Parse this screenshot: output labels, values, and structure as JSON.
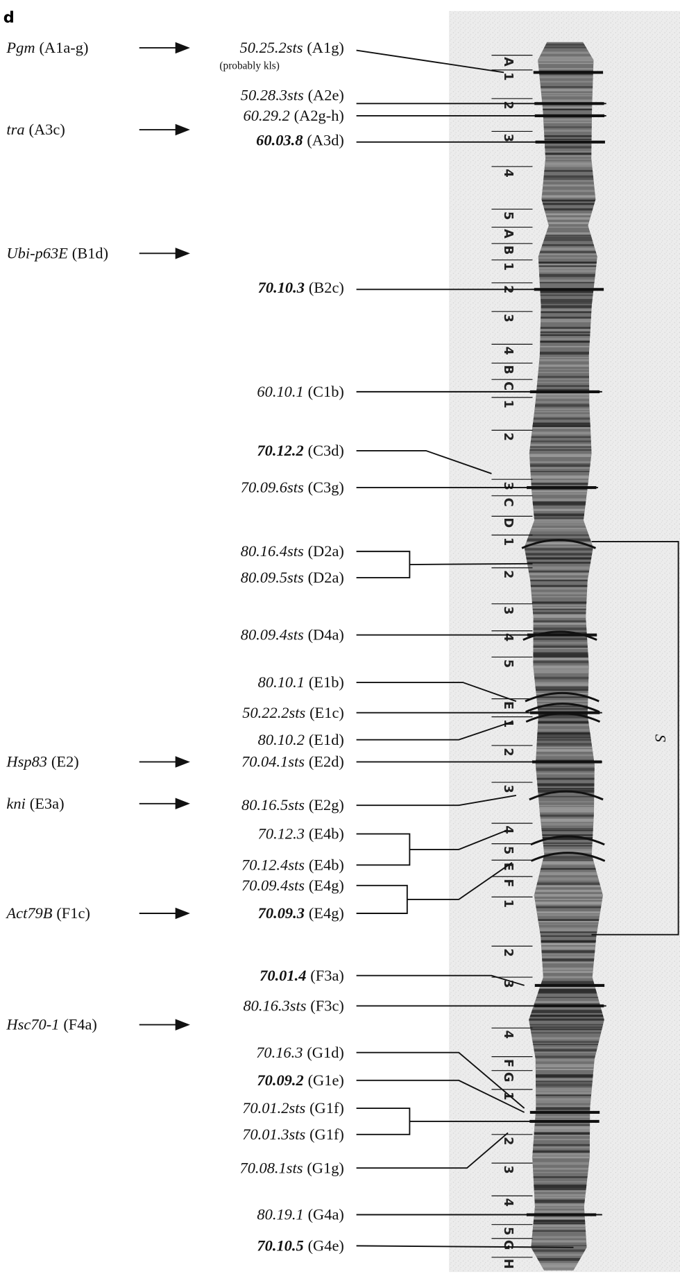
{
  "panel_label": "d",
  "genes": [
    {
      "name": "Pgm",
      "band": "(A1a-g)"
    },
    {
      "name": "tra",
      "band": "(A3c)"
    },
    {
      "name": "Ubi-p63E",
      "band": "(B1d)"
    },
    {
      "name": "Hsp83",
      "band": "(E2)"
    },
    {
      "name": "kni",
      "band": "(E3a)"
    },
    {
      "name": "Act79B",
      "band": "(F1c)"
    },
    {
      "name": "Hsc70-1",
      "band": "(F4a)"
    }
  ],
  "probes": [
    {
      "name": "50.25.2sts",
      "band": "(A1g)",
      "bold": false,
      "note": "(probably kls)"
    },
    {
      "name": "50.28.3sts",
      "band": "(A2e)",
      "bold": false
    },
    {
      "name": "60.29.2",
      "band": "(A2g-h)",
      "bold": false
    },
    {
      "name": "60.03.8",
      "band": "(A3d)",
      "bold": true
    },
    {
      "name": "70.10.3",
      "band": "(B2c)",
      "bold": true
    },
    {
      "name": "60.10.1",
      "band": "(C1b)",
      "bold": false
    },
    {
      "name": "70.12.2",
      "band": "(C3d)",
      "bold": true
    },
    {
      "name": "70.09.6sts",
      "band": "(C3g)",
      "bold": false
    },
    {
      "name": "80.16.4sts",
      "band": "(D2a)",
      "bold": false
    },
    {
      "name": "80.09.5sts",
      "band": "(D2a)",
      "bold": false
    },
    {
      "name": "80.09.4sts",
      "band": "(D4a)",
      "bold": false
    },
    {
      "name": "80.10.1",
      "band": "(E1b)",
      "bold": false
    },
    {
      "name": "50.22.2sts",
      "band": "(E1c)",
      "bold": false
    },
    {
      "name": "80.10.2",
      "band": "(E1d)",
      "bold": false
    },
    {
      "name": "70.04.1sts",
      "band": "(E2d)",
      "bold": false
    },
    {
      "name": "80.16.5sts",
      "band": "(E2g)",
      "bold": false
    },
    {
      "name": "70.12.3",
      "band": "(E4b)",
      "bold": false
    },
    {
      "name": "70.12.4sts",
      "band": "(E4b)",
      "bold": false
    },
    {
      "name": "70.09.4sts",
      "band": "(E4g)",
      "bold": false
    },
    {
      "name": "70.09.3",
      "band": "(E4g)",
      "bold": true
    },
    {
      "name": "70.01.4",
      "band": "(F3a)",
      "bold": true
    },
    {
      "name": "80.16.3sts",
      "band": "(F3c)",
      "bold": false
    },
    {
      "name": "70.16.3",
      "band": "(G1d)",
      "bold": false
    },
    {
      "name": "70.09.2",
      "band": "(G1e)",
      "bold": true
    },
    {
      "name": "70.01.2sts",
      "band": "(G1f)",
      "bold": false
    },
    {
      "name": "70.01.3sts",
      "band": "(G1f)",
      "bold": false
    },
    {
      "name": "70.08.1sts",
      "band": "(G1g)",
      "bold": false
    },
    {
      "name": "80.19.1",
      "band": "(G4a)",
      "bold": false
    },
    {
      "name": "70.10.5",
      "band": "(G4e)",
      "bold": true
    }
  ],
  "division_labels": [
    "A",
    "1",
    "2",
    "3",
    "4",
    "5",
    "A",
    "B",
    "1",
    "2",
    "3",
    "4",
    "B",
    "C",
    "1",
    "2",
    "3",
    "C",
    "D",
    "1",
    "2",
    "3",
    "4",
    "5",
    "E",
    "1",
    "2",
    "3",
    "4",
    "5",
    "E",
    "F",
    "1",
    "2",
    "3",
    "4",
    "F",
    "G",
    "1",
    "2",
    "3",
    "4",
    "5",
    "G",
    "H"
  ],
  "section_label": "S"
}
